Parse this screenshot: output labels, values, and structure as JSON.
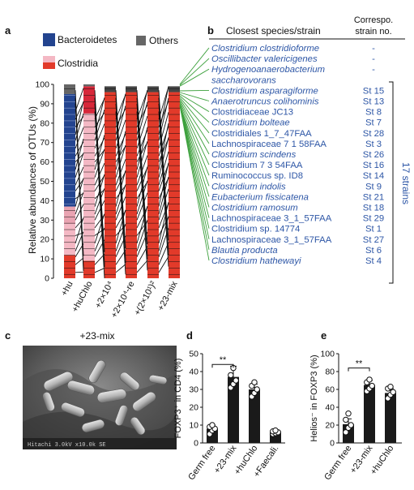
{
  "figure": {
    "panel_a": {
      "letter": "a",
      "ylabel": "Relative abundances of OTUs (%)",
      "legend": [
        {
          "label": "Bacteroidetes",
          "color": "#23448f"
        },
        {
          "label": "Others",
          "color": "#666666"
        },
        {
          "label": "Clostridia",
          "color": "#e23a2a"
        }
      ],
      "yticks": [
        "0",
        "10",
        "20",
        "30",
        "40",
        "50",
        "60",
        "70",
        "80",
        "90",
        "100"
      ],
      "xlabels": [
        "+hu",
        "+huChlo",
        "+2×10⁴",
        "+2×10⁴-re",
        "+(2×10¹)²",
        "+23-mix"
      ]
    },
    "panel_b": {
      "letter": "b",
      "col1_header": "Closest species/strain",
      "col2_header_line1": "Correspo.",
      "col2_header_line2": "strain no.",
      "side_label": "17 strains",
      "rows": [
        {
          "name": "Clostridium clostridioforme",
          "italic": true,
          "strain": "-"
        },
        {
          "name": "Oscillibacter valericigenes",
          "italic": true,
          "strain": "-"
        },
        {
          "name": "Hydrogenoanaerobacterium",
          "italic": true,
          "strain": "-"
        },
        {
          "name": "saccharovorans",
          "italic": true,
          "strain": ""
        },
        {
          "name": "Clostridium asparagiforme",
          "italic": true,
          "strain": "St 15"
        },
        {
          "name": "Anaerotruncus colihominis",
          "italic": true,
          "strain": "St 13"
        },
        {
          "name": "Clostridiaceae JC13",
          "italic": false,
          "strain": "St 8"
        },
        {
          "name": "Clostridium bolteae",
          "italic": true,
          "strain": "St 7"
        },
        {
          "name": "Clostridiales 1_7_47FAA",
          "italic": false,
          "strain": "St 28"
        },
        {
          "name": "Lachnospiraceae 7 1 58FAA",
          "italic": false,
          "strain": "St 3"
        },
        {
          "name": "Clostridium scindens",
          "italic": true,
          "strain": "St 26"
        },
        {
          "name": "Clostridium 7 3 54FAA",
          "italic": false,
          "strain": "St 16"
        },
        {
          "name": "Ruminococcus sp. ID8",
          "italic": false,
          "strain": "St 14"
        },
        {
          "name": "Clostridium indolis",
          "italic": true,
          "strain": "St 9"
        },
        {
          "name": "Eubacterium  fissicatena",
          "italic": true,
          "strain": "St 21"
        },
        {
          "name": "Clostridium ramosum",
          "italic": true,
          "strain": "St 18"
        },
        {
          "name": "Lachnospiraceae 3_1_57FAA",
          "italic": false,
          "strain": "St 29"
        },
        {
          "name": "Clostridium  sp. 14774",
          "italic": false,
          "strain": "St 1"
        },
        {
          "name": "Lachnospiraceae 3_1_57FAA",
          "italic": false,
          "strain": "St 27"
        },
        {
          "name": "Blautia producta",
          "italic": true,
          "strain": "St 6"
        },
        {
          "name": "Clostridium hathewayi",
          "italic": true,
          "strain": "St 4"
        }
      ]
    },
    "panel_c": {
      "letter": "c",
      "title": "+23-mix",
      "caption": "Hitachi  3.0kV  x10.0k  SE"
    },
    "panel_d": {
      "letter": "d",
      "ylabel": "FOXP3⁺ in CD4 (%)",
      "sig": "**"
    },
    "panel_e": {
      "letter": "e",
      "ylabel": "Helios⁻ in FOXP3 (%)",
      "sig": "**"
    }
  },
  "chart_data": [
    {
      "type": "bar",
      "panel": "d",
      "categories": [
        "Germ free",
        "+23-mix",
        "+huChlo",
        "+Faecali."
      ],
      "values": [
        8,
        37,
        30,
        6
      ],
      "errors": [
        2,
        6,
        3,
        1
      ],
      "points": [
        [
          5,
          7,
          8,
          9,
          10
        ],
        [
          31,
          33,
          35,
          38,
          42
        ],
        [
          26,
          28,
          30,
          32,
          34
        ],
        [
          5,
          5.5,
          6,
          6.5,
          7
        ]
      ],
      "ylabel": "FOXP3⁺ in CD4 (%)",
      "ylim": [
        0,
        50
      ],
      "yticks": [
        0,
        10,
        20,
        30,
        40,
        50
      ],
      "bar_color": "#1a1a1a"
    },
    {
      "type": "bar",
      "panel": "e",
      "categories": [
        "Germ free",
        "+23-mix",
        "+huChlo"
      ],
      "values": [
        21,
        65,
        56
      ],
      "errors": [
        6,
        5,
        5
      ],
      "points": [
        [
          12,
          17,
          20,
          26,
          33
        ],
        [
          58,
          61,
          64,
          68,
          71
        ],
        [
          50,
          54,
          57,
          61,
          63
        ]
      ],
      "ylabel": "Helios⁻ in FOXP3 (%)",
      "ylim": [
        0,
        100
      ],
      "yticks": [
        0,
        20,
        40,
        60,
        80,
        100
      ],
      "bar_color": "#1a1a1a"
    }
  ]
}
